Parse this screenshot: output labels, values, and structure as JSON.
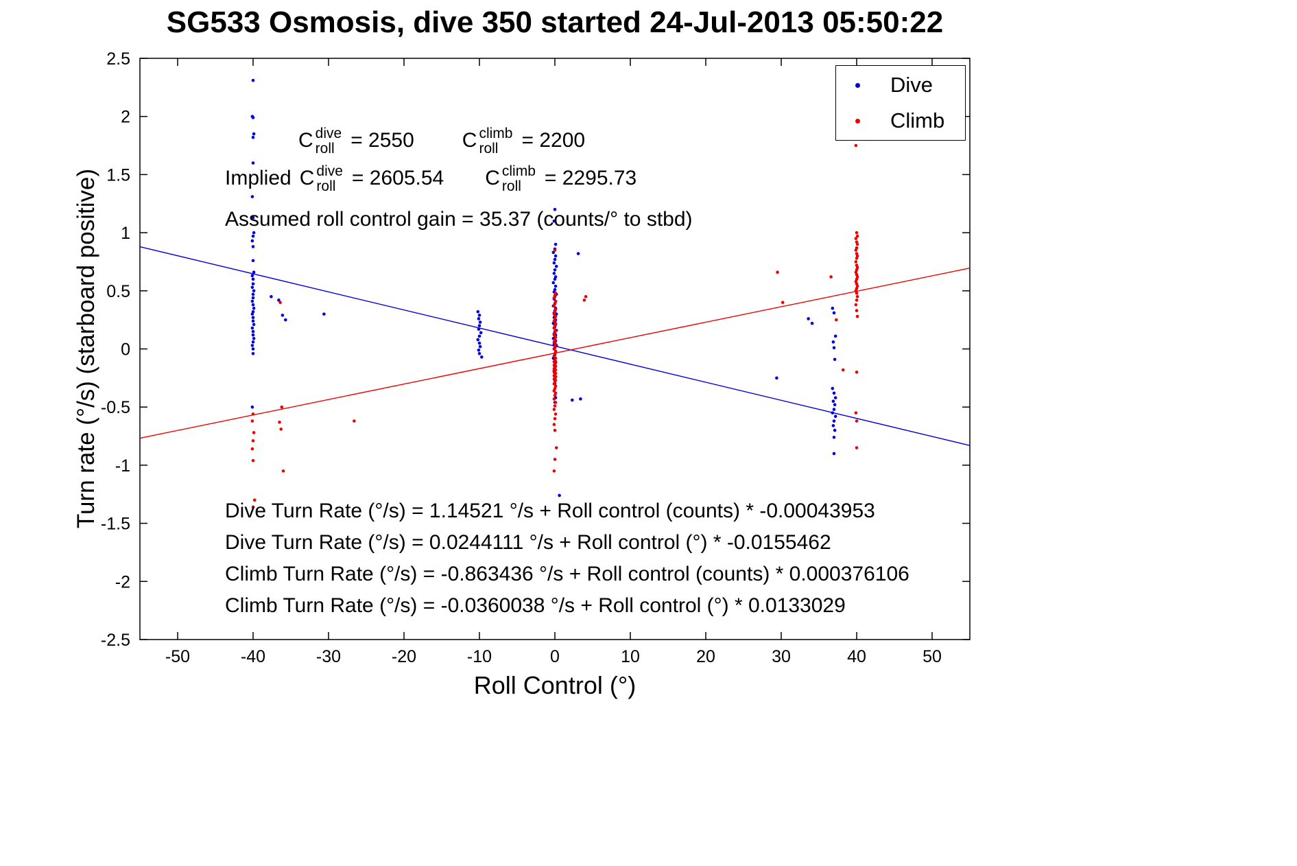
{
  "legend": {
    "items": [
      {
        "label": "Dive",
        "color": "#0000dd"
      },
      {
        "label": "Climb",
        "color": "#ee0000"
      }
    ]
  },
  "annotations": {
    "c_base": "C",
    "c_sub": "roll",
    "dive_sup": "dive",
    "climb_sup": "climb",
    "c_dive_value": "= 2550",
    "c_climb_value": "= 2200",
    "implied_prefix": "Implied",
    "implied_dive_value": "= 2605.54",
    "implied_climb_value": "= 2295.73",
    "gain_line": "Assumed roll control gain = 35.37 (counts/° to stbd)",
    "fit_lines": [
      "Dive Turn Rate (°/s) = 1.14521 °/s + Roll control (counts) * -0.00043953",
      "Dive Turn Rate (°/s) = 0.0244111 °/s + Roll control (°) * -0.0155462",
      "Climb Turn Rate (°/s) = -0.863436 °/s + Roll control (counts) * 0.000376106",
      "Climb Turn Rate (°/s) = -0.0360038 °/s + Roll control (°) * 0.0133029"
    ]
  },
  "chart_data": {
    "type": "scatter",
    "title": "SG533 Osmosis, dive 350 started 24-Jul-2013 05:50:22",
    "xlabel": "Roll Control (°)",
    "ylabel": "Turn rate (°/s) (starboard positive)",
    "xlim": [
      -55,
      55
    ],
    "ylim": [
      -2.5,
      2.5
    ],
    "xticks": [
      -50,
      -40,
      -30,
      -20,
      -10,
      0,
      10,
      20,
      30,
      40,
      50
    ],
    "yticks": [
      -2.5,
      -2,
      -1.5,
      -1,
      -0.5,
      0,
      0.5,
      1,
      1.5,
      2,
      2.5
    ],
    "grid": false,
    "legend_position": "top-right",
    "series": [
      {
        "name": "Dive",
        "color": "#0000dd",
        "marker": "dot",
        "fit_line": {
          "intercept": 0.0244111,
          "slope": -0.0155462
        },
        "points": [
          [
            -40,
            2.31
          ],
          [
            -40.1,
            2.0
          ],
          [
            -40,
            1.99
          ],
          [
            -39.9,
            1.85
          ],
          [
            -40,
            1.82
          ],
          [
            -40,
            1.6
          ],
          [
            -40.1,
            1.31
          ],
          [
            -40,
            1.13
          ],
          [
            -39.9,
            1.0
          ],
          [
            -40,
            0.97
          ],
          [
            -40.1,
            0.93
          ],
          [
            -40,
            0.88
          ],
          [
            -40,
            0.76
          ],
          [
            -39.9,
            0.66
          ],
          [
            -40.1,
            0.63
          ],
          [
            -40,
            0.6
          ],
          [
            -40,
            0.56
          ],
          [
            -40.1,
            0.53
          ],
          [
            -39.9,
            0.5
          ],
          [
            -40,
            0.47
          ],
          [
            -40,
            0.44
          ],
          [
            -40.1,
            0.41
          ],
          [
            -40,
            0.38
          ],
          [
            -39.9,
            0.35
          ],
          [
            -40,
            0.32
          ],
          [
            -40.1,
            0.3
          ],
          [
            -40,
            0.27
          ],
          [
            -40,
            0.24
          ],
          [
            -39.9,
            0.21
          ],
          [
            -40.1,
            0.18
          ],
          [
            -40,
            0.15
          ],
          [
            -40,
            0.12
          ],
          [
            -39.9,
            0.09
          ],
          [
            -40,
            0.06
          ],
          [
            -40.1,
            0.03
          ],
          [
            -40,
            0.0
          ],
          [
            -40,
            -0.04
          ],
          [
            -40.1,
            -0.5
          ],
          [
            -37.6,
            0.45
          ],
          [
            -36.6,
            0.42
          ],
          [
            -36.1,
            0.29
          ],
          [
            -35.7,
            0.25
          ],
          [
            -30.6,
            0.3
          ],
          [
            -10.2,
            0.32
          ],
          [
            -10,
            0.29
          ],
          [
            -10.1,
            0.26
          ],
          [
            -9.9,
            0.23
          ],
          [
            -10,
            0.2
          ],
          [
            -10.1,
            0.17
          ],
          [
            -9.8,
            0.14
          ],
          [
            -10,
            0.11
          ],
          [
            -10.2,
            0.08
          ],
          [
            -10,
            0.05
          ],
          [
            -9.9,
            0.02
          ],
          [
            -10.1,
            -0.01
          ],
          [
            -10,
            -0.04
          ],
          [
            -9.7,
            -0.07
          ],
          [
            0,
            1.2
          ],
          [
            -0.1,
            1.1
          ],
          [
            0.1,
            0.9
          ],
          [
            0,
            0.86
          ],
          [
            -0.2,
            0.83
          ],
          [
            0.1,
            0.8
          ],
          [
            0,
            0.77
          ],
          [
            -0.1,
            0.74
          ],
          [
            0.2,
            0.71
          ],
          [
            0,
            0.68
          ],
          [
            -0.1,
            0.65
          ],
          [
            0.1,
            0.62
          ],
          [
            0,
            0.6
          ],
          [
            -0.2,
            0.57
          ],
          [
            0.1,
            0.54
          ],
          [
            0,
            0.51
          ],
          [
            -0.1,
            0.49
          ],
          [
            0.2,
            0.47
          ],
          [
            0,
            0.45
          ],
          [
            -0.1,
            0.43
          ],
          [
            0.1,
            0.41
          ],
          [
            0,
            0.39
          ],
          [
            -0.2,
            0.37
          ],
          [
            0.1,
            0.35
          ],
          [
            0,
            0.33
          ],
          [
            -0.1,
            0.31
          ],
          [
            0.2,
            0.3
          ],
          [
            0,
            0.28
          ],
          [
            -0.1,
            0.27
          ],
          [
            0.1,
            0.25
          ],
          [
            0,
            0.24
          ],
          [
            -0.2,
            0.22
          ],
          [
            0.1,
            0.21
          ],
          [
            0,
            0.19
          ],
          [
            -0.1,
            0.18
          ],
          [
            0.2,
            0.16
          ],
          [
            0,
            0.15
          ],
          [
            -0.1,
            0.13
          ],
          [
            0.1,
            0.12
          ],
          [
            0,
            0.1
          ],
          [
            -0.2,
            0.09
          ],
          [
            0.1,
            0.07
          ],
          [
            0,
            0.06
          ],
          [
            -0.1,
            0.04
          ],
          [
            0.2,
            0.03
          ],
          [
            0,
            0.01
          ],
          [
            -0.1,
            0.0
          ],
          [
            0.1,
            -0.02
          ],
          [
            0,
            -0.05
          ],
          [
            -0.2,
            -0.08
          ],
          [
            0.1,
            -0.11
          ],
          [
            0,
            -0.15
          ],
          [
            -0.1,
            -0.19
          ],
          [
            0.1,
            -0.24
          ],
          [
            0,
            -0.3
          ],
          [
            -0.1,
            -0.36
          ],
          [
            0.1,
            -0.42
          ],
          [
            0,
            -0.46
          ],
          [
            2.3,
            -0.44
          ],
          [
            3.4,
            -0.43
          ],
          [
            0.6,
            -1.26
          ],
          [
            3.1,
            0.82
          ],
          [
            33.6,
            0.26
          ],
          [
            34.1,
            0.22
          ],
          [
            29.4,
            -0.25
          ],
          [
            36.8,
            0.35
          ],
          [
            37,
            0.31
          ],
          [
            37.2,
            0.11
          ],
          [
            36.9,
            0.06
          ],
          [
            37,
            0.01
          ],
          [
            37.1,
            -0.09
          ],
          [
            36.8,
            -0.34
          ],
          [
            37,
            -0.38
          ],
          [
            37.2,
            -0.42
          ],
          [
            36.9,
            -0.45
          ],
          [
            37.1,
            -0.48
          ],
          [
            37,
            -0.52
          ],
          [
            36.8,
            -0.55
          ],
          [
            37.2,
            -0.58
          ],
          [
            37,
            -0.62
          ],
          [
            36.9,
            -0.66
          ],
          [
            37.1,
            -0.7
          ],
          [
            37,
            -0.76
          ],
          [
            37,
            -0.9
          ]
        ]
      },
      {
        "name": "Climb",
        "color": "#ee0000",
        "marker": "dot",
        "fit_line": {
          "intercept": -0.0360038,
          "slope": 0.0133029
        },
        "points": [
          [
            -40,
            -0.56
          ],
          [
            -40.1,
            -0.62
          ],
          [
            -39.9,
            -0.72
          ],
          [
            -40,
            -0.79
          ],
          [
            -40.1,
            -0.86
          ],
          [
            -40,
            -0.96
          ],
          [
            -39.8,
            -1.3
          ],
          [
            -40,
            -1.36
          ],
          [
            -36.4,
            0.4
          ],
          [
            -36.2,
            -0.5
          ],
          [
            -36.5,
            -0.63
          ],
          [
            -36.3,
            -0.69
          ],
          [
            -36,
            -1.05
          ],
          [
            -26.6,
            -0.62
          ],
          [
            0,
            0.85
          ],
          [
            0.1,
            0.48
          ],
          [
            0,
            0.46
          ],
          [
            -0.1,
            0.44
          ],
          [
            0.1,
            0.41
          ],
          [
            0,
            0.39
          ],
          [
            -0.1,
            0.37
          ],
          [
            0.1,
            0.34
          ],
          [
            0,
            0.32
          ],
          [
            -0.1,
            0.3
          ],
          [
            0.1,
            0.28
          ],
          [
            0,
            0.26
          ],
          [
            -0.1,
            0.24
          ],
          [
            0.1,
            0.22
          ],
          [
            0,
            0.2
          ],
          [
            -0.1,
            0.18
          ],
          [
            0.1,
            0.16
          ],
          [
            0,
            0.14
          ],
          [
            -0.1,
            0.12
          ],
          [
            0.1,
            0.1
          ],
          [
            0,
            0.08
          ],
          [
            -0.1,
            0.06
          ],
          [
            0.1,
            0.04
          ],
          [
            0,
            0.02
          ],
          [
            -0.1,
            0.0
          ],
          [
            0.1,
            -0.02
          ],
          [
            0,
            -0.04
          ],
          [
            -0.1,
            -0.06
          ],
          [
            0.1,
            -0.08
          ],
          [
            0,
            -0.1
          ],
          [
            -0.1,
            -0.11
          ],
          [
            0.1,
            -0.12
          ],
          [
            0,
            -0.13
          ],
          [
            -0.1,
            -0.14
          ],
          [
            0.1,
            -0.15
          ],
          [
            0,
            -0.16
          ],
          [
            -0.1,
            -0.17
          ],
          [
            0.1,
            -0.18
          ],
          [
            0,
            -0.19
          ],
          [
            -0.1,
            -0.2
          ],
          [
            0.1,
            -0.21
          ],
          [
            0,
            -0.22
          ],
          [
            -0.1,
            -0.23
          ],
          [
            0.1,
            -0.24
          ],
          [
            0,
            -0.25
          ],
          [
            -0.1,
            -0.26
          ],
          [
            0.1,
            -0.27
          ],
          [
            0,
            -0.28
          ],
          [
            -0.1,
            -0.3
          ],
          [
            0.1,
            -0.32
          ],
          [
            0,
            -0.34
          ],
          [
            -0.1,
            -0.36
          ],
          [
            0.1,
            -0.38
          ],
          [
            0,
            -0.4
          ],
          [
            -0.1,
            -0.43
          ],
          [
            0.1,
            -0.46
          ],
          [
            0,
            -0.49
          ],
          [
            -0.1,
            -0.52
          ],
          [
            0.1,
            -0.56
          ],
          [
            0,
            -0.6
          ],
          [
            -0.1,
            -0.65
          ],
          [
            0,
            -0.7
          ],
          [
            0.2,
            -0.85
          ],
          [
            0,
            -0.95
          ],
          [
            -0.1,
            -1.05
          ],
          [
            4.1,
            0.45
          ],
          [
            3.9,
            0.42
          ],
          [
            29.5,
            0.66
          ],
          [
            30.2,
            0.4
          ],
          [
            39.9,
            1.75
          ],
          [
            40,
            1.0
          ],
          [
            40.1,
            0.97
          ],
          [
            39.9,
            0.95
          ],
          [
            40,
            0.92
          ],
          [
            40.1,
            0.9
          ],
          [
            40,
            0.87
          ],
          [
            39.9,
            0.85
          ],
          [
            40,
            0.82
          ],
          [
            40.1,
            0.8
          ],
          [
            40,
            0.78
          ],
          [
            39.9,
            0.75
          ],
          [
            40,
            0.72
          ],
          [
            40.1,
            0.7
          ],
          [
            40,
            0.68
          ],
          [
            39.9,
            0.66
          ],
          [
            40,
            0.64
          ],
          [
            40.1,
            0.62
          ],
          [
            40,
            0.6
          ],
          [
            39.9,
            0.58
          ],
          [
            40,
            0.56
          ],
          [
            40.1,
            0.54
          ],
          [
            40,
            0.52
          ],
          [
            39.9,
            0.5
          ],
          [
            40,
            0.48
          ],
          [
            40.1,
            0.45
          ],
          [
            40,
            0.42
          ],
          [
            39.9,
            0.38
          ],
          [
            40,
            0.33
          ],
          [
            40.1,
            0.28
          ],
          [
            40,
            -0.2
          ],
          [
            39.9,
            -0.55
          ],
          [
            40,
            -0.62
          ],
          [
            40,
            -0.85
          ],
          [
            36.6,
            0.62
          ],
          [
            37.3,
            0.25
          ],
          [
            38.2,
            -0.18
          ]
        ]
      }
    ]
  }
}
